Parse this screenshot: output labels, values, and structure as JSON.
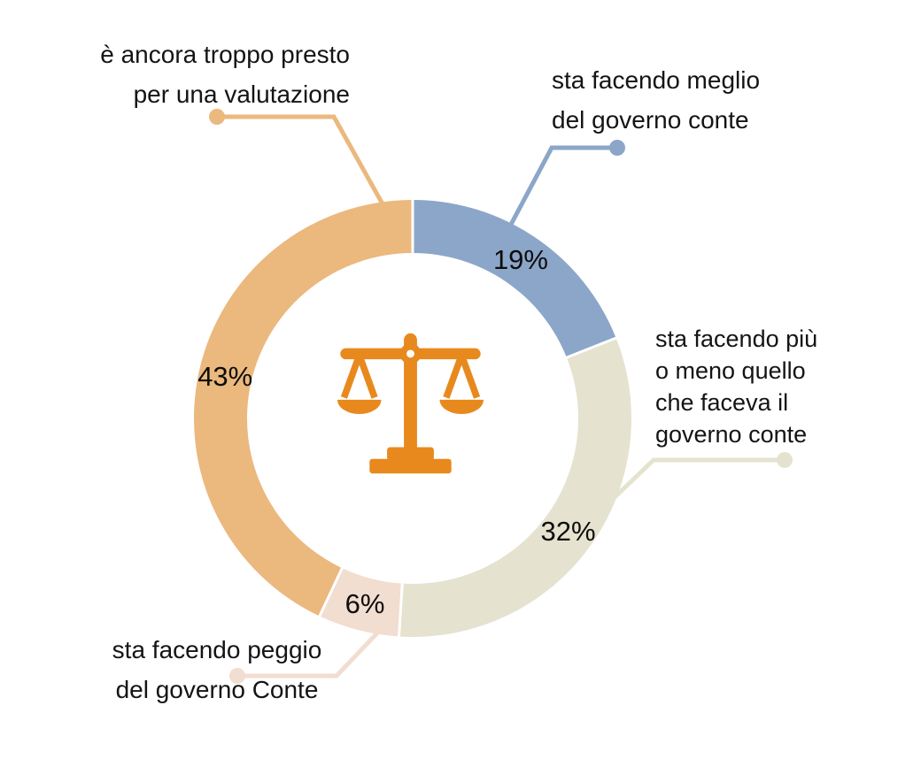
{
  "chart_data": {
    "type": "pie",
    "donut": true,
    "direction": "clockwise",
    "start_angle_deg": 0,
    "title": "",
    "slices": [
      {
        "label": "sta facendo meglio del governo conte",
        "value": 19,
        "display": "19%",
        "color": "#8BA6C8"
      },
      {
        "label": "sta facendo più o meno quello che faceva il governo conte",
        "value": 32,
        "display": "32%",
        "color": "#E5E3CF"
      },
      {
        "label": "sta facendo peggio del governo Conte",
        "value": 6,
        "display": "6%",
        "color": "#F2DDD1"
      },
      {
        "label": "è ancora troppo presto per una valutazione",
        "value": 43,
        "display": "43%",
        "color": "#EBB87E"
      }
    ],
    "center_icon": "scales-of-justice",
    "icon_color": "#E8891E",
    "label_text_color": "#141414",
    "background_color": "#FFFFFF"
  },
  "callouts": [
    {
      "lines": [
        "sta facendo meglio",
        "del governo conte"
      ]
    },
    {
      "lines": [
        "sta facendo più",
        "o meno quello",
        "che faceva il",
        "governo conte"
      ]
    },
    {
      "lines": [
        "sta facendo peggio",
        "del governo Conte"
      ]
    },
    {
      "lines": [
        "è ancora troppo presto",
        "per una valutazione"
      ]
    }
  ]
}
